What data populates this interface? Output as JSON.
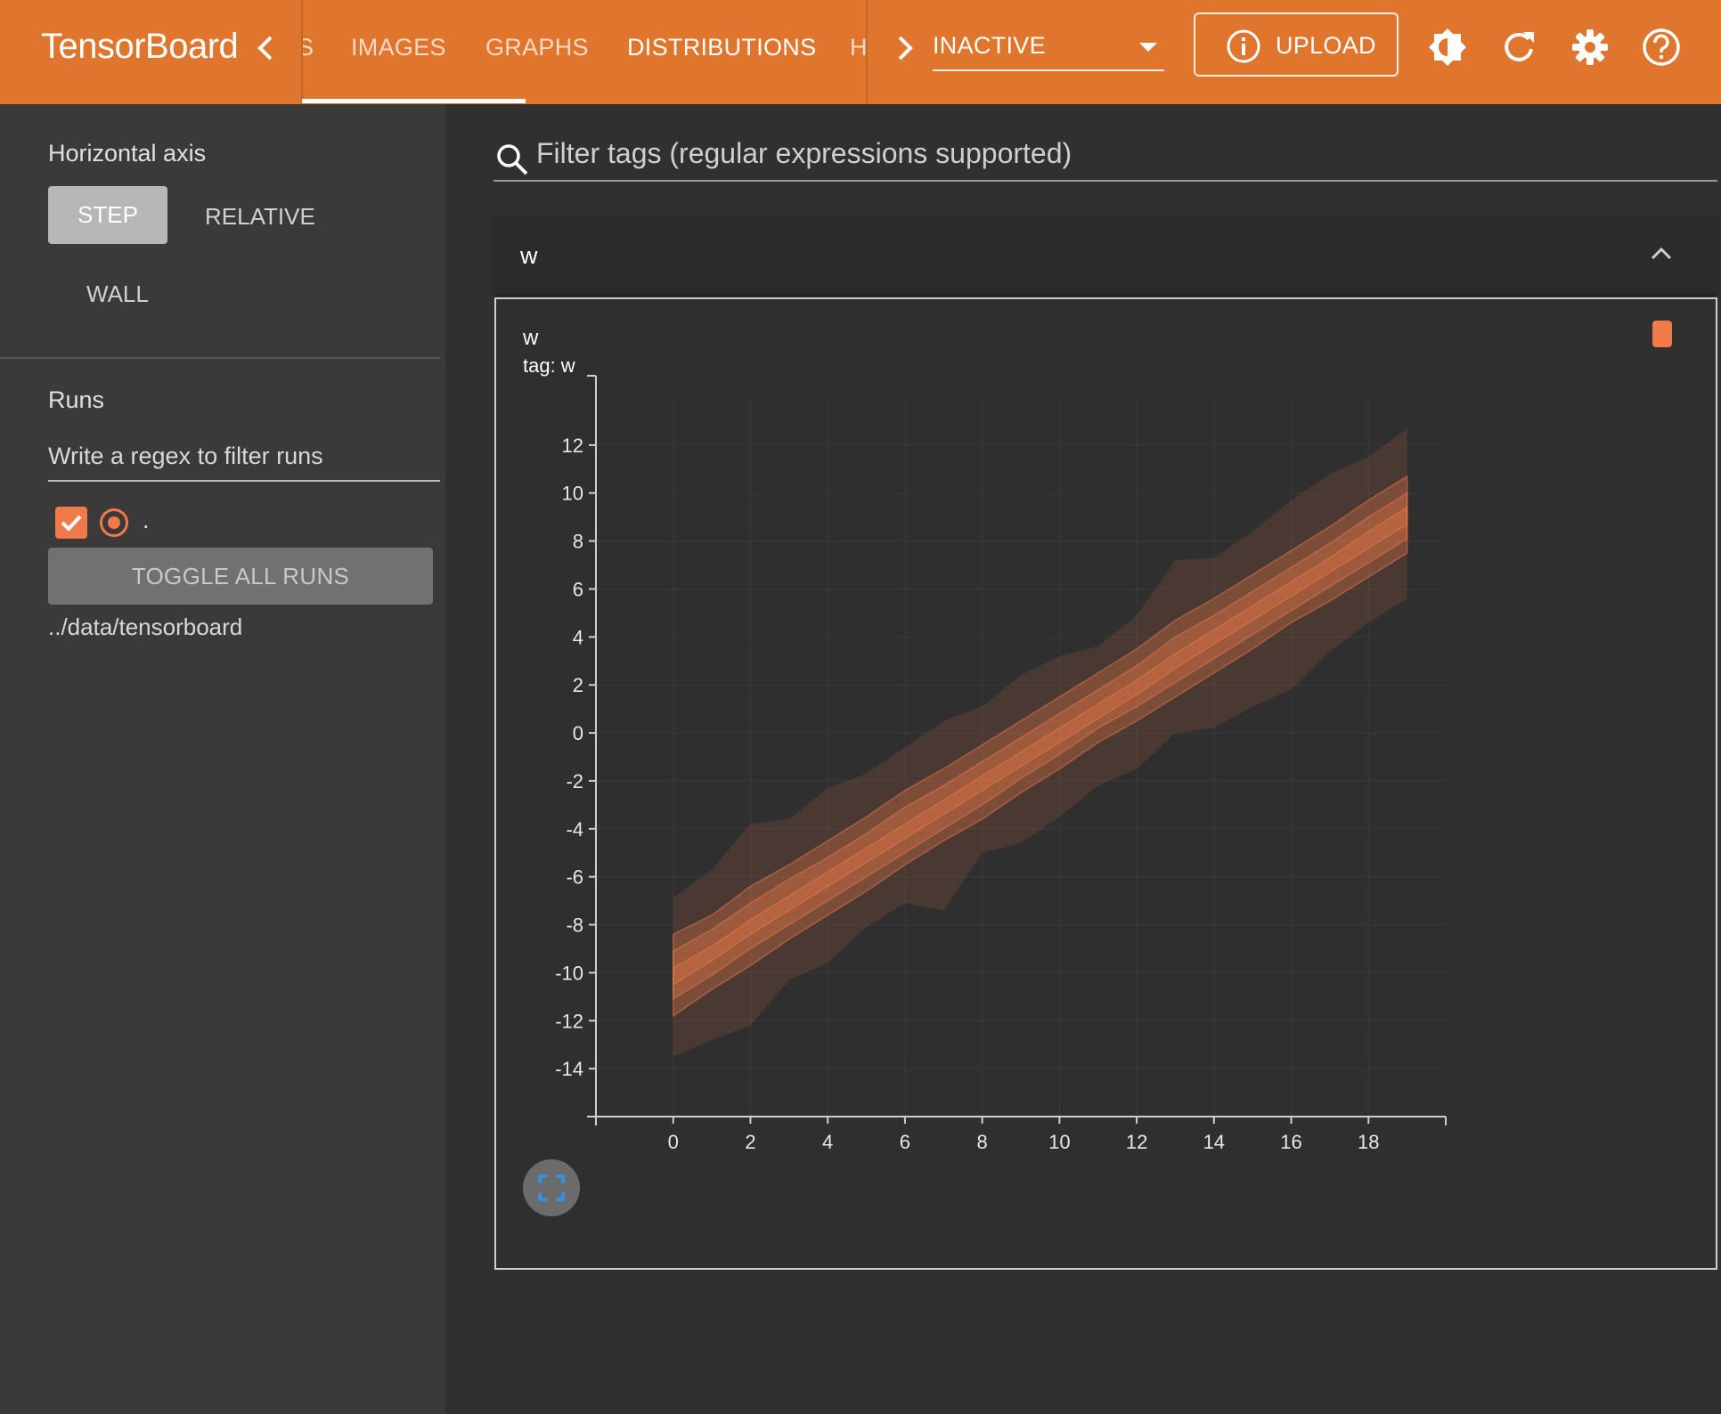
{
  "header": {
    "brand": "TensorBoard",
    "tabs": [
      {
        "label": "S",
        "active": false
      },
      {
        "label": "IMAGES",
        "active": false
      },
      {
        "label": "GRAPHS",
        "active": false
      },
      {
        "label": "DISTRIBUTIONS",
        "active": true
      },
      {
        "label": "HI",
        "active": false
      }
    ],
    "run_selector": "INACTIVE",
    "upload_label": "UPLOAD",
    "icons": [
      "chevron-left-icon",
      "chevron-right-icon",
      "brightness-icon",
      "refresh-icon",
      "settings-icon",
      "help-icon"
    ],
    "color": "#e0762d"
  },
  "sidebar": {
    "horizontal_axis_label": "Horizontal axis",
    "axis_options": [
      "STEP",
      "RELATIVE",
      "WALL"
    ],
    "selected_axis": "STEP",
    "runs_label": "Runs",
    "runs_filter_placeholder": "Write a regex to filter runs",
    "runs": [
      {
        "name": ".",
        "checked": true,
        "color": "#f07a4a"
      }
    ],
    "toggle_all_label": "TOGGLE ALL RUNS",
    "logdir": "../data/tensorboard"
  },
  "main": {
    "tag_filter_placeholder": "Filter tags (regular expressions supported)",
    "group_title": "w",
    "card": {
      "title": "w",
      "subtitle": "tag: w"
    }
  },
  "chart_data": {
    "type": "area",
    "x_ticks": [
      0,
      2,
      4,
      6,
      8,
      10,
      12,
      14,
      16,
      18
    ],
    "y_ticks": [
      12,
      10,
      8,
      6,
      4,
      2,
      0,
      -2,
      -4,
      -6,
      -8,
      -10,
      -12,
      -14
    ],
    "xlim": [
      -2,
      20
    ],
    "ylim": [
      -16,
      14
    ],
    "grid": true,
    "series_color": "#f07a4a",
    "steps": [
      0,
      1,
      2,
      3,
      4,
      5,
      6,
      7,
      8,
      9,
      10,
      11,
      12,
      13,
      14,
      15,
      16,
      17,
      18,
      19
    ],
    "bands": [
      {
        "opacity": 0.14,
        "upper": [
          -6.9,
          -5.7,
          -3.8,
          -3.6,
          -2.3,
          -1.7,
          -0.6,
          0.5,
          1.1,
          2.4,
          3.2,
          3.6,
          4.9,
          7.2,
          7.3,
          8.4,
          9.7,
          10.8,
          11.5,
          12.7
        ],
        "lower": [
          -13.5,
          -12.8,
          -12.2,
          -10.3,
          -9.6,
          -8.1,
          -7.1,
          -7.4,
          -5.0,
          -4.6,
          -3.5,
          -2.2,
          -1.5,
          0.0,
          0.2,
          1.1,
          1.8,
          3.4,
          4.6,
          5.6
        ]
      },
      {
        "opacity": 0.3,
        "upper": [
          -8.4,
          -7.6,
          -6.4,
          -5.5,
          -4.5,
          -3.5,
          -2.4,
          -1.5,
          -0.5,
          0.5,
          1.5,
          2.5,
          3.5,
          4.7,
          5.6,
          6.6,
          7.6,
          8.6,
          9.7,
          10.7
        ],
        "lower": [
          -11.8,
          -10.7,
          -9.7,
          -8.6,
          -7.6,
          -6.6,
          -5.5,
          -4.5,
          -3.6,
          -2.5,
          -1.5,
          -0.4,
          0.5,
          1.5,
          2.5,
          3.5,
          4.6,
          5.5,
          6.5,
          7.5
        ]
      },
      {
        "opacity": 0.3,
        "upper": [
          -9.1,
          -8.2,
          -7.1,
          -6.1,
          -5.2,
          -4.2,
          -3.1,
          -2.2,
          -1.2,
          -0.2,
          0.8,
          1.8,
          2.8,
          4.0,
          4.9,
          5.9,
          6.9,
          7.9,
          9.0,
          10.0
        ],
        "lower": [
          -11.1,
          -10.1,
          -9.0,
          -8.0,
          -7.0,
          -6.0,
          -5.0,
          -4.0,
          -3.0,
          -1.9,
          -0.9,
          0.2,
          1.1,
          2.1,
          3.1,
          4.1,
          5.1,
          6.1,
          7.1,
          8.1
        ]
      },
      {
        "opacity": 0.3,
        "upper": [
          -9.8,
          -8.9,
          -7.8,
          -6.8,
          -5.8,
          -4.8,
          -3.8,
          -2.8,
          -1.8,
          -0.8,
          0.2,
          1.2,
          2.2,
          3.3,
          4.3,
          5.3,
          6.3,
          7.3,
          8.4,
          9.4
        ],
        "lower": [
          -10.5,
          -9.5,
          -8.4,
          -7.4,
          -6.4,
          -5.4,
          -4.4,
          -3.4,
          -2.4,
          -1.4,
          -0.4,
          0.6,
          1.6,
          2.7,
          3.7,
          4.7,
          5.7,
          6.7,
          7.7,
          8.7
        ]
      }
    ]
  }
}
